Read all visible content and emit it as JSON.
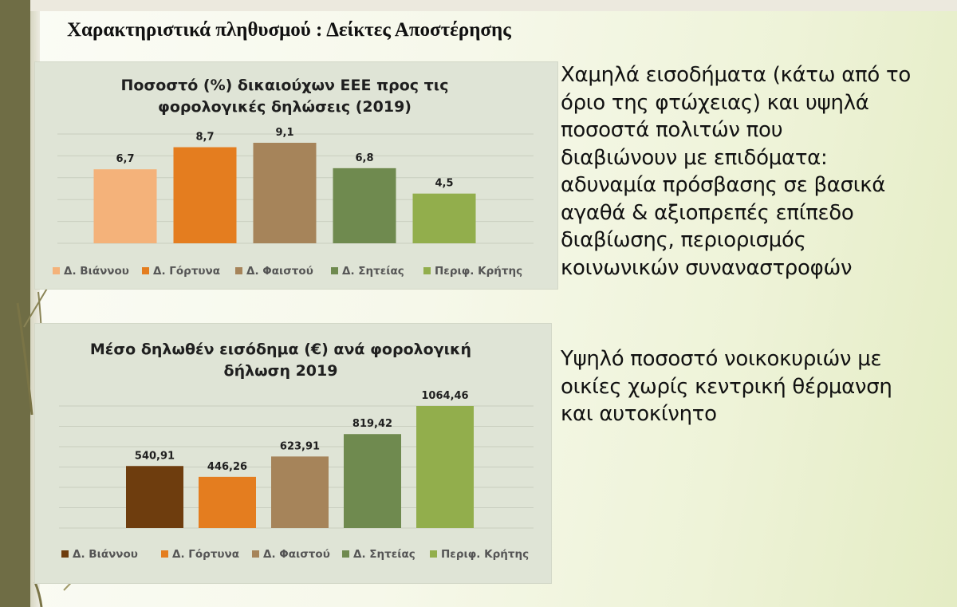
{
  "page": {
    "title": "Χαρακτηριστικά πληθυσμού : Δείκτες Αποστέρησης"
  },
  "text_blocks": [
    {
      "lines": [
        "Χαμηλά εισοδήματα (κάτω από το",
        "όριο της φτώχειας) και υψηλά",
        "ποσοστά πολιτών που",
        "διαβιώνουν με επιδόματα:",
        "αδυναμία πρόσβασης σε βασικά",
        "αγαθά & αξιοπρεπές επίπεδο",
        "διαβίωσης, περιορισμός",
        "κοινωνικών συναναστροφών"
      ]
    },
    {
      "lines": [
        "Υψηλό ποσοστό νοικοκυριών με",
        "οικίες χωρίς κεντρική θέρμανση",
        "και αυτοκίνητο"
      ]
    }
  ],
  "chart_data": [
    {
      "type": "bar",
      "title_lines": [
        "Ποσοστό (%) δικαιούχων ΕΕΕ προς τις",
        "φορολογικές δηλώσεις (2019)"
      ],
      "categories": [
        "Δ. Βιάννου",
        "Δ. Γόρτυνα",
        "Δ. Φαιστού",
        "Δ. Σητείας",
        "Περιφ. Κρήτης"
      ],
      "values": [
        6.7,
        8.7,
        9.1,
        6.8,
        4.5
      ],
      "value_labels": [
        "6,7",
        "8,7",
        "9,1",
        "6,8",
        "4,5"
      ],
      "colors": [
        "#f4b27a",
        "#e47d1f",
        "#a6845a",
        "#6f8a4f",
        "#92ae4c"
      ],
      "ylim": [
        0,
        9.1
      ],
      "grid": true,
      "legend": "bottom",
      "xlabel": "",
      "ylabel": ""
    },
    {
      "type": "bar",
      "title_lines": [
        "Μέσο δηλωθέν εισόδημα (€) ανά φορολογική",
        "δήλωση 2019"
      ],
      "categories": [
        "Δ. Βιάννου",
        "Δ. Γόρτυνα",
        "Δ. Φαιστού",
        "Δ. Σητείας",
        "Περιφ. Κρήτης"
      ],
      "values": [
        540.91,
        446.26,
        623.91,
        819.42,
        1064.46
      ],
      "value_labels": [
        "540,91",
        "446,26",
        "623,91",
        "819,42",
        "1064,46"
      ],
      "colors": [
        "#6e3d0e",
        "#e47d1f",
        "#a6845a",
        "#6f8a4f",
        "#92ae4c"
      ],
      "ylim": [
        0,
        1064.46
      ],
      "grid": true,
      "legend": "bottom",
      "xlabel": "",
      "ylabel": ""
    }
  ]
}
